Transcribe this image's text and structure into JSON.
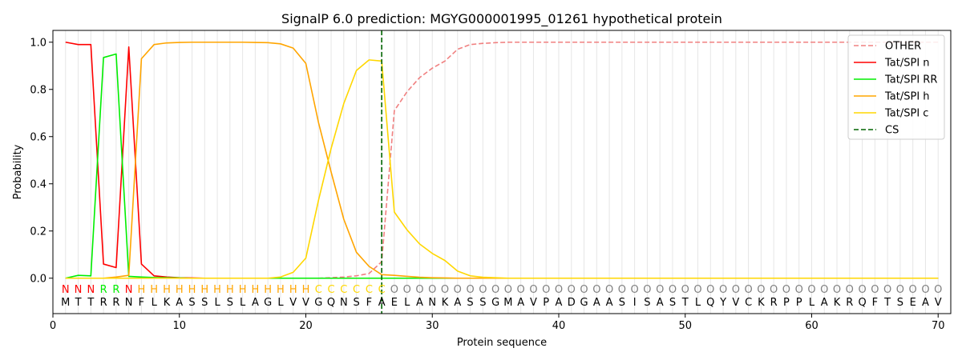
{
  "chart_data": {
    "type": "line",
    "title": "SignalP 6.0 prediction: MGYG000001995_01261 hypothetical protein",
    "xlabel": "Protein sequence",
    "ylabel": "Probability",
    "xlim": [
      0,
      71
    ],
    "ylim": [
      -0.15,
      1.05
    ],
    "x_ticks": [
      0,
      10,
      20,
      30,
      40,
      50,
      60,
      70
    ],
    "y_ticks": [
      0.0,
      0.2,
      0.4,
      0.6,
      0.8,
      1.0
    ],
    "grid": "vertical lines at each residue",
    "legend_position": "top-right",
    "sequence": [
      "M",
      "T",
      "T",
      "R",
      "R",
      "N",
      "F",
      "L",
      "K",
      "A",
      "S",
      "S",
      "L",
      "S",
      "L",
      "A",
      "G",
      "L",
      "V",
      "V",
      "G",
      "Q",
      "N",
      "S",
      "F",
      "A",
      "E",
      "L",
      "A",
      "N",
      "K",
      "A",
      "S",
      "S",
      "G",
      "M",
      "A",
      "V",
      "P",
      "A",
      "D",
      "G",
      "A",
      "A",
      "S",
      "I",
      "S",
      "A",
      "S",
      "T",
      "L",
      "Q",
      "Y",
      "V",
      "C",
      "K",
      "R",
      "P",
      "P",
      "L",
      "A",
      "K",
      "R",
      "Q",
      "F",
      "T",
      "S",
      "E",
      "A",
      "V"
    ],
    "labels": [
      "N",
      "N",
      "N",
      "R",
      "R",
      "N",
      "H",
      "H",
      "H",
      "H",
      "H",
      "H",
      "H",
      "H",
      "H",
      "H",
      "H",
      "H",
      "H",
      "H",
      "C",
      "C",
      "C",
      "C",
      "C",
      "C",
      "O",
      "O",
      "O",
      "O",
      "O",
      "O",
      "O",
      "O",
      "O",
      "O",
      "O",
      "O",
      "O",
      "O",
      "O",
      "O",
      "O",
      "O",
      "O",
      "O",
      "O",
      "O",
      "O",
      "O",
      "O",
      "O",
      "O",
      "O",
      "O",
      "O",
      "O",
      "O",
      "O",
      "O",
      "O",
      "O",
      "O",
      "O",
      "O",
      "O",
      "O",
      "O",
      "O",
      "O"
    ],
    "label_colors": {
      "N": "#ff0000",
      "R": "#00ee00",
      "H": "#ffa500",
      "C": "#ffd700",
      "O": "#808080"
    },
    "cleavage_site": 26,
    "series": [
      {
        "name": "OTHER",
        "color": "#f08080",
        "dashed": true,
        "values": [
          0.0,
          0.0,
          0.0,
          0.0,
          0.0,
          0.0,
          0.0,
          0.0,
          0.0,
          0.0,
          0.0,
          0.0,
          0.0,
          0.0,
          0.0,
          0.0,
          0.0,
          0.0,
          0.0,
          0.0,
          0.0,
          0.002,
          0.005,
          0.01,
          0.02,
          0.07,
          0.71,
          0.79,
          0.85,
          0.89,
          0.92,
          0.97,
          0.99,
          0.995,
          0.998,
          1.0,
          1.0,
          1.0,
          1.0,
          1.0,
          1.0,
          1.0,
          1.0,
          1.0,
          1.0,
          1.0,
          1.0,
          1.0,
          1.0,
          1.0,
          1.0,
          1.0,
          1.0,
          1.0,
          1.0,
          1.0,
          1.0,
          1.0,
          1.0,
          1.0,
          1.0,
          1.0,
          1.0,
          1.0,
          1.0,
          1.0,
          1.0,
          1.0,
          1.0,
          1.0
        ]
      },
      {
        "name": "Tat/SPI n",
        "color": "#ff0000",
        "dashed": false,
        "values": [
          1.0,
          0.99,
          0.99,
          0.06,
          0.045,
          0.98,
          0.06,
          0.01,
          0.005,
          0.002,
          0.001,
          0.0,
          0.0,
          0.0,
          0.0,
          0.0,
          0.0,
          0.0,
          0.0,
          0.0,
          0.0,
          0.0,
          0.0,
          0.0,
          0.0,
          0.0,
          0.0,
          0.0,
          0.0,
          0.0,
          0.0,
          0.0,
          0.0,
          0.0,
          0.0,
          0.0,
          0.0,
          0.0,
          0.0,
          0.0,
          0.0,
          0.0,
          0.0,
          0.0,
          0.0,
          0.0,
          0.0,
          0.0,
          0.0,
          0.0,
          0.0,
          0.0,
          0.0,
          0.0,
          0.0,
          0.0,
          0.0,
          0.0,
          0.0,
          0.0,
          0.0,
          0.0,
          0.0,
          0.0,
          0.0,
          0.0,
          0.0,
          0.0,
          0.0,
          0.0
        ]
      },
      {
        "name": "Tat/SPI RR",
        "color": "#00ee00",
        "dashed": false,
        "values": [
          0.0,
          0.012,
          0.01,
          0.935,
          0.95,
          0.008,
          0.005,
          0.003,
          0.002,
          0.001,
          0.0,
          0.0,
          0.0,
          0.0,
          0.0,
          0.0,
          0.0,
          0.0,
          0.0,
          0.0,
          0.0,
          0.0,
          0.0,
          0.0,
          0.0,
          0.0,
          0.0,
          0.0,
          0.0,
          0.0,
          0.0,
          0.0,
          0.0,
          0.0,
          0.0,
          0.0,
          0.0,
          0.0,
          0.0,
          0.0,
          0.0,
          0.0,
          0.0,
          0.0,
          0.0,
          0.0,
          0.0,
          0.0,
          0.0,
          0.0,
          0.0,
          0.0,
          0.0,
          0.0,
          0.0,
          0.0,
          0.0,
          0.0,
          0.0,
          0.0,
          0.0,
          0.0,
          0.0,
          0.0,
          0.0,
          0.0,
          0.0,
          0.0,
          0.0,
          0.0
        ]
      },
      {
        "name": "Tat/SPI h",
        "color": "#ffa500",
        "dashed": false,
        "values": [
          0.0,
          0.0,
          0.0,
          0.0,
          0.005,
          0.012,
          0.93,
          0.99,
          0.997,
          0.999,
          1.0,
          1.0,
          1.0,
          1.0,
          1.0,
          0.999,
          0.998,
          0.993,
          0.975,
          0.91,
          0.66,
          0.45,
          0.25,
          0.11,
          0.05,
          0.015,
          0.012,
          0.008,
          0.004,
          0.002,
          0.001,
          0.0,
          0.0,
          0.0,
          0.0,
          0.0,
          0.0,
          0.0,
          0.0,
          0.0,
          0.0,
          0.0,
          0.0,
          0.0,
          0.0,
          0.0,
          0.0,
          0.0,
          0.0,
          0.0,
          0.0,
          0.0,
          0.0,
          0.0,
          0.0,
          0.0,
          0.0,
          0.0,
          0.0,
          0.0,
          0.0,
          0.0,
          0.0,
          0.0,
          0.0,
          0.0,
          0.0,
          0.0,
          0.0,
          0.0
        ]
      },
      {
        "name": "Tat/SPI c",
        "color": "#ffd700",
        "dashed": false,
        "values": [
          0.0,
          0.0,
          0.0,
          0.0,
          0.0,
          0.0,
          0.0,
          0.0,
          0.0,
          0.0,
          0.0,
          0.0,
          0.0,
          0.0,
          0.0,
          0.0,
          0.0,
          0.005,
          0.025,
          0.085,
          0.33,
          0.55,
          0.74,
          0.88,
          0.925,
          0.92,
          0.28,
          0.205,
          0.145,
          0.105,
          0.075,
          0.03,
          0.01,
          0.004,
          0.002,
          0.0,
          0.0,
          0.0,
          0.0,
          0.0,
          0.0,
          0.0,
          0.0,
          0.0,
          0.0,
          0.0,
          0.0,
          0.0,
          0.0,
          0.0,
          0.0,
          0.0,
          0.0,
          0.0,
          0.0,
          0.0,
          0.0,
          0.0,
          0.0,
          0.0,
          0.0,
          0.0,
          0.0,
          0.0,
          0.0,
          0.0,
          0.0,
          0.0,
          0.0,
          0.0
        ]
      }
    ],
    "legend": [
      {
        "label": "OTHER",
        "color": "#f08080",
        "dashed": true
      },
      {
        "label": "Tat/SPI n",
        "color": "#ff0000",
        "dashed": false
      },
      {
        "label": "Tat/SPI RR",
        "color": "#00ee00",
        "dashed": false
      },
      {
        "label": "Tat/SPI h",
        "color": "#ffa500",
        "dashed": false
      },
      {
        "label": "Tat/SPI c",
        "color": "#ffd700",
        "dashed": false
      },
      {
        "label": "CS",
        "color": "#006400",
        "dashed": true
      }
    ]
  }
}
